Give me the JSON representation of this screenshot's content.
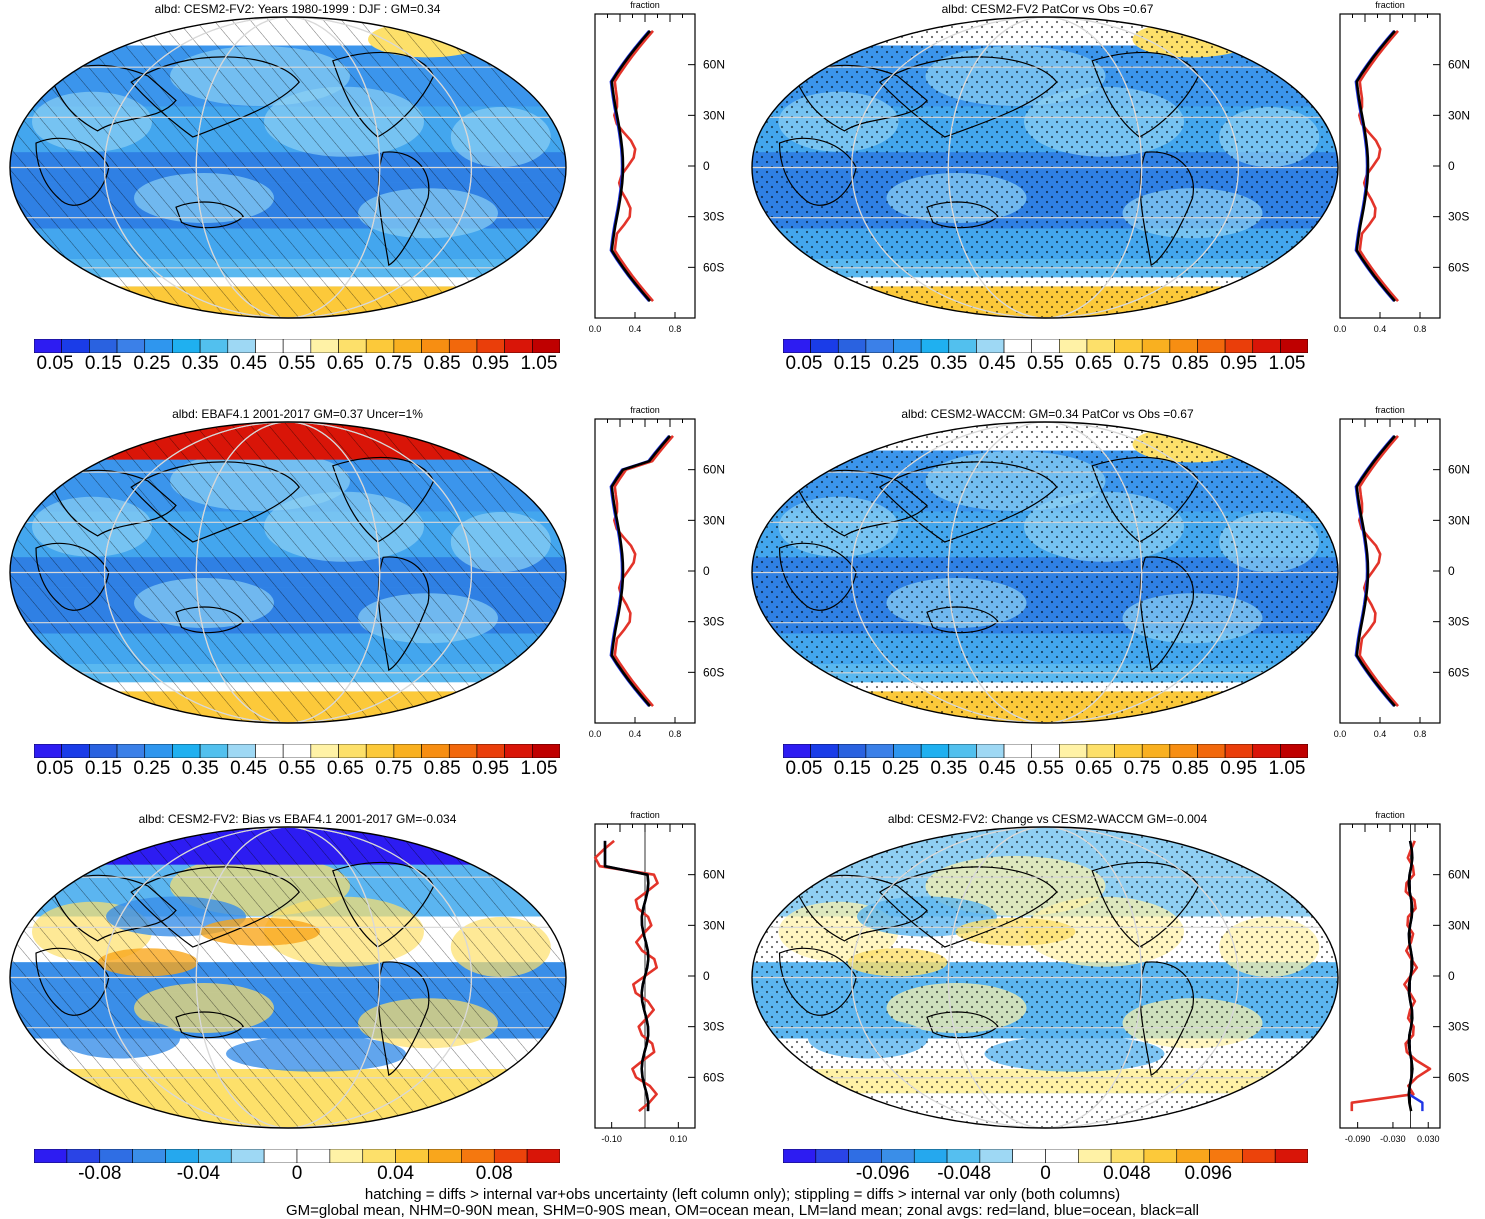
{
  "chart_data": [
    {
      "type": "heatmap",
      "title": "albd: CESM2-FV2: Years 1980-1999 : DJF : GM=0.34",
      "colorbar_ticks": [
        "0.05",
        "0.15",
        "0.25",
        "0.35",
        "0.45",
        "0.55",
        "0.65",
        "0.75",
        "0.85",
        "0.95",
        "1.05"
      ],
      "overlay": "hatching",
      "zonal": {
        "xlabel": "fraction",
        "xticks": [
          "0.0",
          "0.4",
          "0.8"
        ],
        "yticks": [
          "60N",
          "30N",
          "0",
          "30S",
          "60S"
        ],
        "xlim": [
          0,
          1
        ]
      }
    },
    {
      "type": "heatmap",
      "title": "albd: CESM2-FV2 PatCor vs Obs =0.67",
      "colorbar_ticks": [
        "0.05",
        "0.15",
        "0.25",
        "0.35",
        "0.45",
        "0.55",
        "0.65",
        "0.75",
        "0.85",
        "0.95",
        "1.05"
      ],
      "overlay": "stippling",
      "zonal": {
        "xlabel": "fraction",
        "xticks": [
          "0.0",
          "0.4",
          "0.8"
        ],
        "yticks": [
          "60N",
          "30N",
          "0",
          "30S",
          "60S"
        ],
        "xlim": [
          0,
          1
        ]
      }
    },
    {
      "type": "heatmap",
      "title": "albd: EBAF4.1 2001-2017 GM=0.37 Uncer=1%",
      "colorbar_ticks": [
        "0.05",
        "0.15",
        "0.25",
        "0.35",
        "0.45",
        "0.55",
        "0.65",
        "0.75",
        "0.85",
        "0.95",
        "1.05"
      ],
      "overlay": "hatching",
      "zonal": {
        "xlabel": "fraction",
        "xticks": [
          "0.0",
          "0.4",
          "0.8"
        ],
        "yticks": [
          "60N",
          "30N",
          "0",
          "30S",
          "60S"
        ],
        "xlim": [
          0,
          1
        ]
      }
    },
    {
      "type": "heatmap",
      "title": "albd: CESM2-WACCM: GM=0.34 PatCor vs Obs =0.67",
      "colorbar_ticks": [
        "0.05",
        "0.15",
        "0.25",
        "0.35",
        "0.45",
        "0.55",
        "0.65",
        "0.75",
        "0.85",
        "0.95",
        "1.05"
      ],
      "overlay": "stippling",
      "zonal": {
        "xlabel": "fraction",
        "xticks": [
          "0.0",
          "0.4",
          "0.8"
        ],
        "yticks": [
          "60N",
          "30N",
          "0",
          "30S",
          "60S"
        ],
        "xlim": [
          0,
          1
        ]
      }
    },
    {
      "type": "heatmap",
      "title": "albd: CESM2-FV2: Bias vs EBAF4.1 2001-2017 GM=-0.034",
      "colorbar_ticks": [
        "-0.08",
        "-0.04",
        "0",
        "0.04",
        "0.08"
      ],
      "overlay": "hatching",
      "zonal": {
        "xlabel": "fraction",
        "xticks": [
          "-0.10",
          "0.10"
        ],
        "yticks": [
          "60N",
          "30N",
          "0",
          "30S",
          "60S"
        ],
        "xlim": [
          -0.15,
          0.15
        ]
      }
    },
    {
      "type": "heatmap",
      "title": "albd: CESM2-FV2: Change vs CESM2-WACCM GM=-0.004",
      "colorbar_ticks": [
        "-0.096",
        "-0.048",
        "0",
        "0.048",
        "0.096"
      ],
      "overlay": "stippling",
      "zonal": {
        "xlabel": "fraction",
        "xticks": [
          "-0.090",
          "-0.030",
          "0.030"
        ],
        "yticks": [
          "60N",
          "30N",
          "0",
          "30S",
          "60S"
        ],
        "xlim": [
          -0.12,
          0.05
        ]
      }
    }
  ],
  "footer": {
    "line1": "hatching = diffs > internal var+obs uncertainty (left column only); stippling = diffs > internal var only (both columns)",
    "line2": "GM=global mean, NHM=0-90N mean, SHM=0-90S mean, OM=ocean mean, LM=land mean; zonal avgs: red=land, blue=ocean, black=all"
  },
  "colors": {
    "seq": [
      "#2d1cf2",
      "#1a3ce8",
      "#2a62e0",
      "#3b80e8",
      "#2f96ee",
      "#1fb0f0",
      "#52c0ee",
      "#9ed8f4",
      "#ffffff",
      "#ffffff",
      "#fff2a6",
      "#fde06a",
      "#fcc93a",
      "#f9b020",
      "#f78e12",
      "#f2680c",
      "#ea3e0a",
      "#d91508",
      "#bf0000"
    ],
    "land": "#e3342a",
    "ocean": "#1f35e6",
    "all": "#000000"
  }
}
